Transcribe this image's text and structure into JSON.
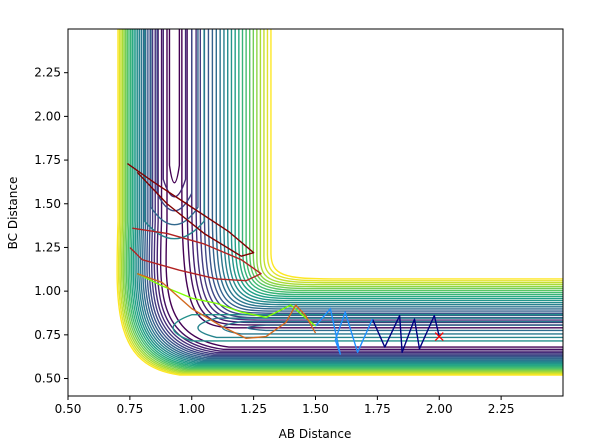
{
  "chart_data": {
    "type": "contour",
    "title": "",
    "xlabel": "AB Distance",
    "ylabel": "BC Distance",
    "xlim": [
      0.5,
      2.5
    ],
    "ylim": [
      0.4,
      2.5
    ],
    "xticks": [
      "0.50",
      "0.75",
      "1.00",
      "1.25",
      "1.50",
      "1.75",
      "2.00",
      "2.25"
    ],
    "yticks": [
      "0.50",
      "0.75",
      "1.00",
      "1.25",
      "1.50",
      "1.75",
      "2.00",
      "2.25"
    ],
    "grid": false,
    "legend": "none",
    "colormap": "viridis",
    "surface": {
      "description_free": true,
      "wall_x": 0.74,
      "wall_y": 0.62,
      "well_x": 0.93,
      "well_y": 0.74,
      "asymptote_bc": 0.74,
      "asymptote_ab": 0.74
    },
    "contour_colors": [
      "#440154",
      "#46327e",
      "#365c8d",
      "#277f8e",
      "#1fa187",
      "#4ac16d",
      "#a0da39",
      "#fde725"
    ],
    "trajectories": [
      {
        "color": "#000080",
        "points": [
          [
            2.0,
            0.74
          ],
          [
            1.98,
            0.86
          ],
          [
            1.92,
            0.67
          ],
          [
            1.9,
            0.84
          ],
          [
            1.85,
            0.65
          ],
          [
            1.84,
            0.86
          ],
          [
            1.78,
            0.68
          ],
          [
            1.73,
            0.84
          ]
        ]
      },
      {
        "color": "#1e90ff",
        "points": [
          [
            1.73,
            0.84
          ],
          [
            1.67,
            0.65
          ],
          [
            1.62,
            0.88
          ],
          [
            1.58,
            0.72
          ],
          [
            1.6,
            0.64
          ],
          [
            1.56,
            0.9
          ],
          [
            1.5,
            0.8
          ]
        ]
      },
      {
        "color": "#7fff00",
        "points": [
          [
            1.5,
            0.8
          ],
          [
            1.4,
            0.92
          ],
          [
            1.3,
            0.85
          ],
          [
            1.2,
            0.88
          ],
          [
            1.1,
            0.93
          ],
          [
            1.0,
            0.96
          ],
          [
            0.88,
            1.03
          ],
          [
            0.78,
            1.1
          ]
        ]
      },
      {
        "color": "#d2691e",
        "points": [
          [
            0.78,
            1.1
          ],
          [
            0.88,
            1.05
          ],
          [
            1.0,
            0.9
          ],
          [
            1.12,
            0.8
          ],
          [
            1.22,
            0.73
          ],
          [
            1.3,
            0.74
          ],
          [
            1.38,
            0.82
          ],
          [
            1.42,
            0.92
          ],
          [
            1.46,
            0.86
          ],
          [
            1.5,
            0.76
          ]
        ]
      },
      {
        "color": "#b22222",
        "points": [
          [
            0.75,
            1.25
          ],
          [
            0.8,
            1.18
          ],
          [
            0.95,
            1.12
          ],
          [
            1.1,
            1.07
          ],
          [
            1.22,
            1.06
          ],
          [
            1.28,
            1.1
          ],
          [
            1.2,
            1.18
          ],
          [
            1.05,
            1.27
          ],
          [
            0.9,
            1.33
          ],
          [
            0.76,
            1.36
          ]
        ]
      },
      {
        "color": "#800000",
        "points": [
          [
            0.74,
            1.73
          ],
          [
            0.85,
            1.62
          ],
          [
            1.0,
            1.48
          ],
          [
            1.15,
            1.34
          ],
          [
            1.25,
            1.22
          ],
          [
            1.2,
            1.2
          ],
          [
            1.05,
            1.33
          ],
          [
            0.9,
            1.5
          ],
          [
            0.78,
            1.68
          ]
        ]
      }
    ],
    "start_marker": {
      "x": 2.0,
      "y": 0.74,
      "symbol": "x",
      "color": "#ff0000"
    }
  }
}
